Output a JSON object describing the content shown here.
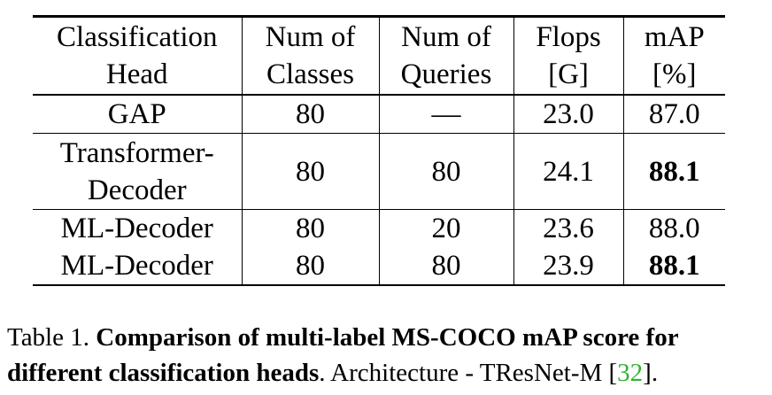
{
  "table": {
    "headers": [
      {
        "line1": "Classification",
        "line2": "Head"
      },
      {
        "line1": "Num of",
        "line2": "Classes"
      },
      {
        "line1": "Num of",
        "line2": "Queries"
      },
      {
        "line1": "Flops",
        "line2": "[G]"
      },
      {
        "line1": "mAP",
        "line2": "[%]"
      }
    ],
    "rows": [
      {
        "head": "GAP",
        "head_line2": "",
        "classes": "80",
        "queries": "—",
        "flops": "23.0",
        "map": "87.0",
        "map_bold": false
      },
      {
        "head": "Transformer-",
        "head_line2": "Decoder",
        "classes": "80",
        "queries": "80",
        "flops": "24.1",
        "map": "88.1",
        "map_bold": true
      },
      {
        "head": "ML-Decoder",
        "head_line2": "",
        "classes": "80",
        "queries": "20",
        "flops": "23.6",
        "map": "88.0",
        "map_bold": false
      },
      {
        "head": "ML-Decoder",
        "head_line2": "",
        "classes": "80",
        "queries": "80",
        "flops": "23.9",
        "map": "88.1",
        "map_bold": true
      }
    ]
  },
  "caption": {
    "label": "Table 1.",
    "bold_text": "Comparison of multi-label MS-COCO mAP score for different classification heads",
    "rest_text": ". Architecture - TResNet-M [",
    "citation": "32",
    "end_text": "].",
    "citation_color": "#33b233"
  }
}
